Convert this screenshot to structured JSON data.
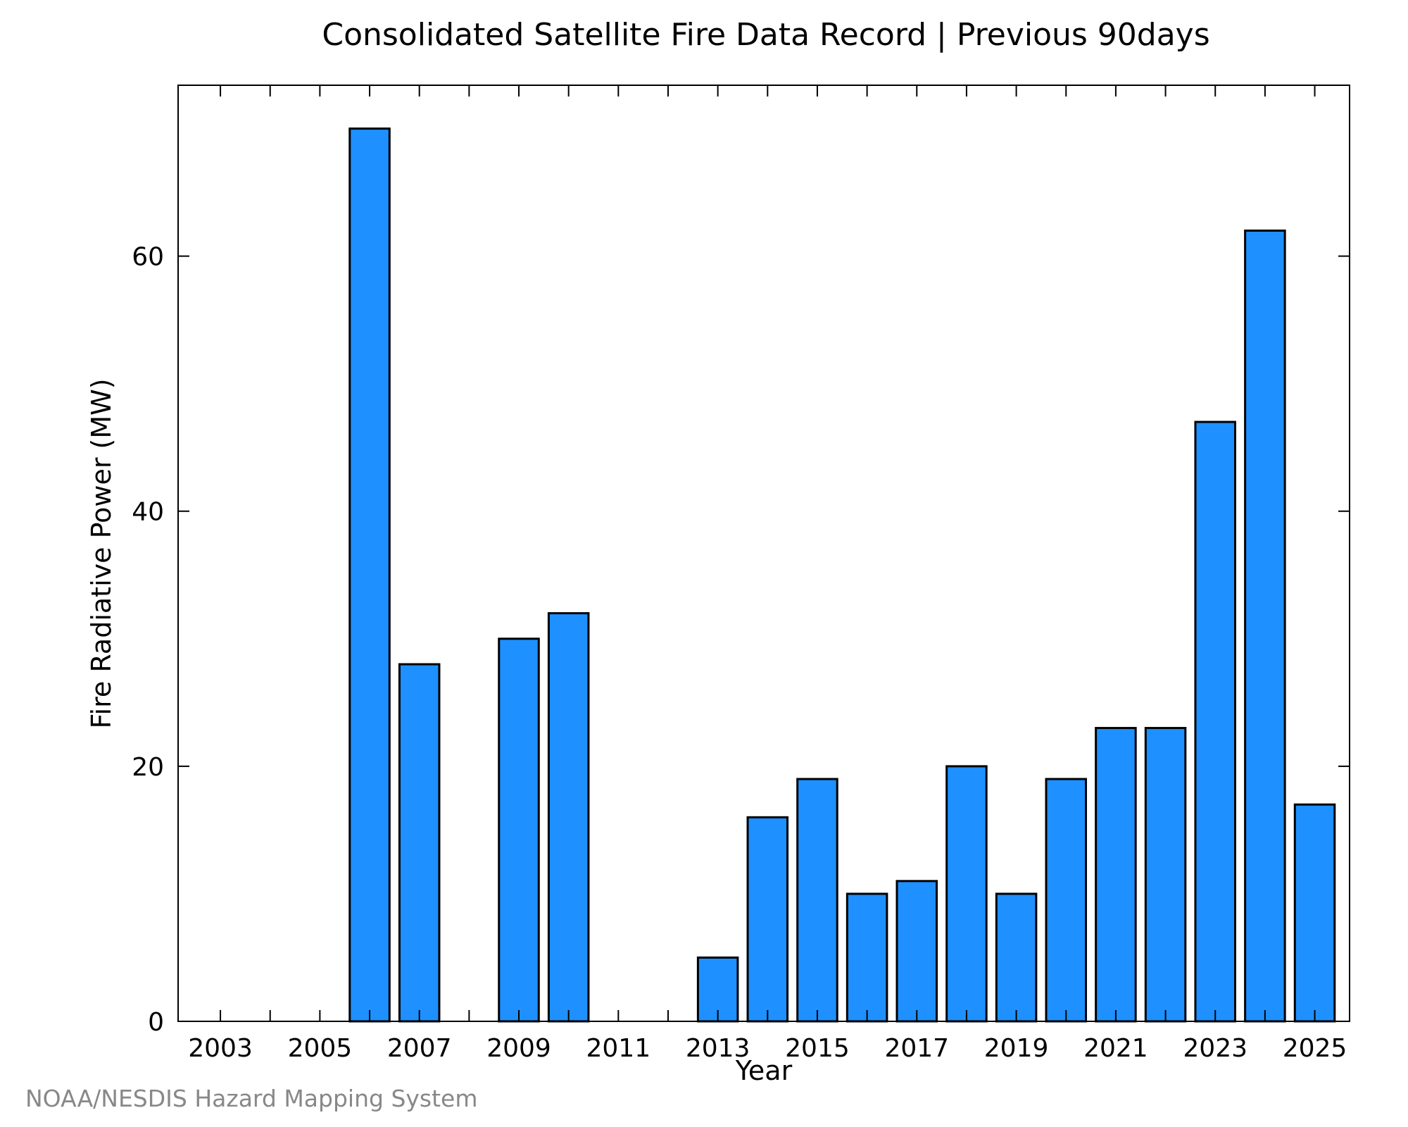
{
  "chart_data": {
    "type": "bar",
    "title": "Consolidated Satellite Fire Data Record | Previous 90days",
    "xlabel": "Year",
    "ylabel": "Fire Radiative Power (MW)",
    "categories": [
      "2003",
      "2004",
      "2005",
      "2006",
      "2007",
      "2008",
      "2009",
      "2010",
      "2011",
      "2012",
      "2013",
      "2014",
      "2015",
      "2016",
      "2017",
      "2018",
      "2019",
      "2020",
      "2021",
      "2022",
      "2023",
      "2024",
      "2025"
    ],
    "values": [
      0,
      0,
      0,
      70,
      28,
      0,
      30,
      32,
      0,
      0,
      5,
      16,
      19,
      10,
      11,
      20,
      10,
      19,
      23,
      23,
      47,
      62,
      17
    ],
    "x_tick_labels": [
      "2003",
      "2005",
      "2007",
      "2009",
      "2011",
      "2013",
      "2015",
      "2017",
      "2019",
      "2021",
      "2023",
      "2025"
    ],
    "y_ticks": [
      0,
      20,
      40,
      60
    ],
    "ylim": [
      0,
      73.4
    ],
    "grid": false,
    "bar_color": "#1e90ff",
    "bar_edge_color": "#000000"
  },
  "credit": "NOAA/NESDIS Hazard Mapping System"
}
